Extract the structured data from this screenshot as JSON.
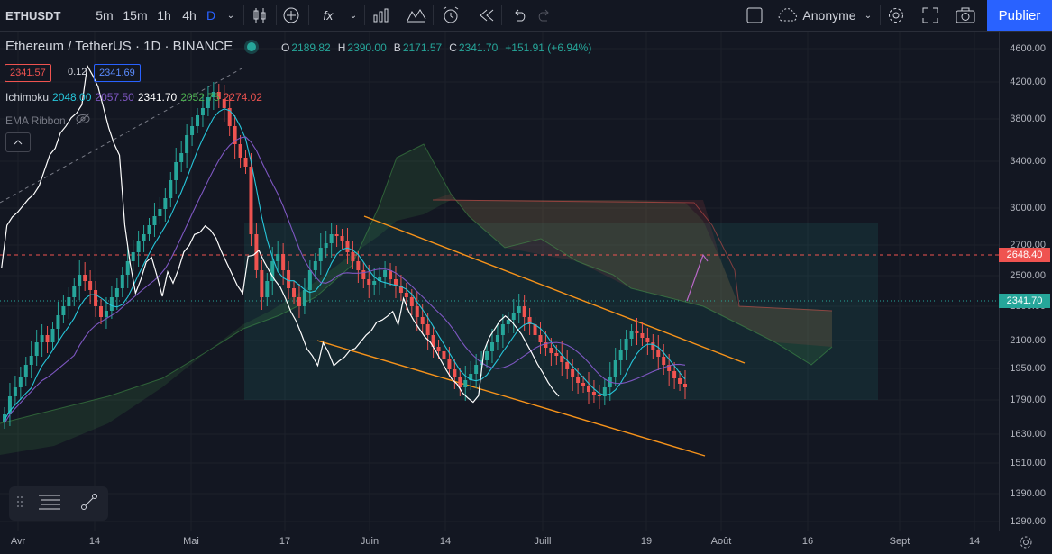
{
  "toolbar": {
    "symbol": "ETHUSDT",
    "intervals": [
      "5m",
      "15m",
      "1h",
      "4h",
      "D"
    ],
    "active_interval": "D",
    "fx_label": "fx",
    "layout_name": "Anonyme",
    "publish_label": "Publier"
  },
  "legend": {
    "name": "Ethereum / TetherUS · 1D · BINANCE",
    "ohlc": {
      "o_label": "O",
      "o": "2189.82",
      "h_label": "H",
      "h": "2390.00",
      "b_label": "B",
      "b": "2171.57",
      "c_label": "C",
      "c": "2341.70",
      "change": "+151.91 (+6.94%)"
    },
    "sell_box": "2341.57",
    "spread": "0.12",
    "buy_box": "2341.69",
    "ichimoku_label": "Ichimoku",
    "ichimoku_values": [
      "2048.00",
      "2057.50",
      "2341.70",
      "2052.75",
      "2274.02"
    ],
    "ema_label": "EMA Ribbon"
  },
  "y_axis": {
    "ticks": [
      "4600.00",
      "4200.00",
      "3800.00",
      "3400.00",
      "3000.00",
      "2700.00",
      "2500.00",
      "2300.00",
      "2100.00",
      "1950.00",
      "1790.00",
      "1630.00",
      "1510.00",
      "1390.00",
      "1290.00"
    ],
    "tag_dashed": "2648.40",
    "tag_last": "2341.70"
  },
  "x_axis": {
    "ticks": [
      "Avr",
      "14",
      "Mai",
      "17",
      "Juin",
      "14",
      "Juill",
      "19",
      "Août",
      "16",
      "Sept",
      "14"
    ]
  },
  "colors": {
    "up": "#26a69a",
    "down": "#ef5350",
    "accent": "#2962ff",
    "tenkan": "#2196f3",
    "kijun": "#7e57c2",
    "chikou": "#ffffff",
    "channel": "#f7931a"
  }
}
